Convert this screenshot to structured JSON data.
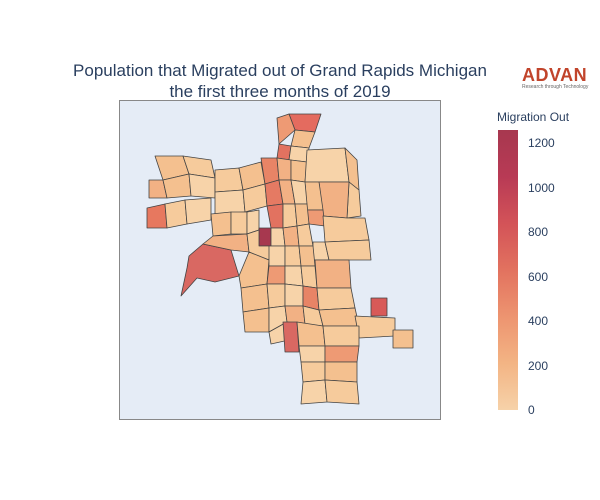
{
  "title": {
    "line1": "Population that Migrated out of Grand Rapids Michigan",
    "line2": "the first three months of 2019"
  },
  "logo": {
    "word": "ADVAN",
    "tagline": "Research through Technology",
    "color": "#c1442b"
  },
  "legend": {
    "title": "Migration Out",
    "ticks": [
      "1200",
      "1000",
      "800",
      "600",
      "400",
      "200",
      "0"
    ],
    "min": 0,
    "max": 1260,
    "colorscale": [
      "#f6d2a9",
      "#f3b484",
      "#ed9470",
      "#e2725f",
      "#d35358",
      "#b83a55",
      "#a7384f"
    ]
  },
  "map": {
    "background": "#e5ecf6",
    "border_color": "#444444"
  }
}
